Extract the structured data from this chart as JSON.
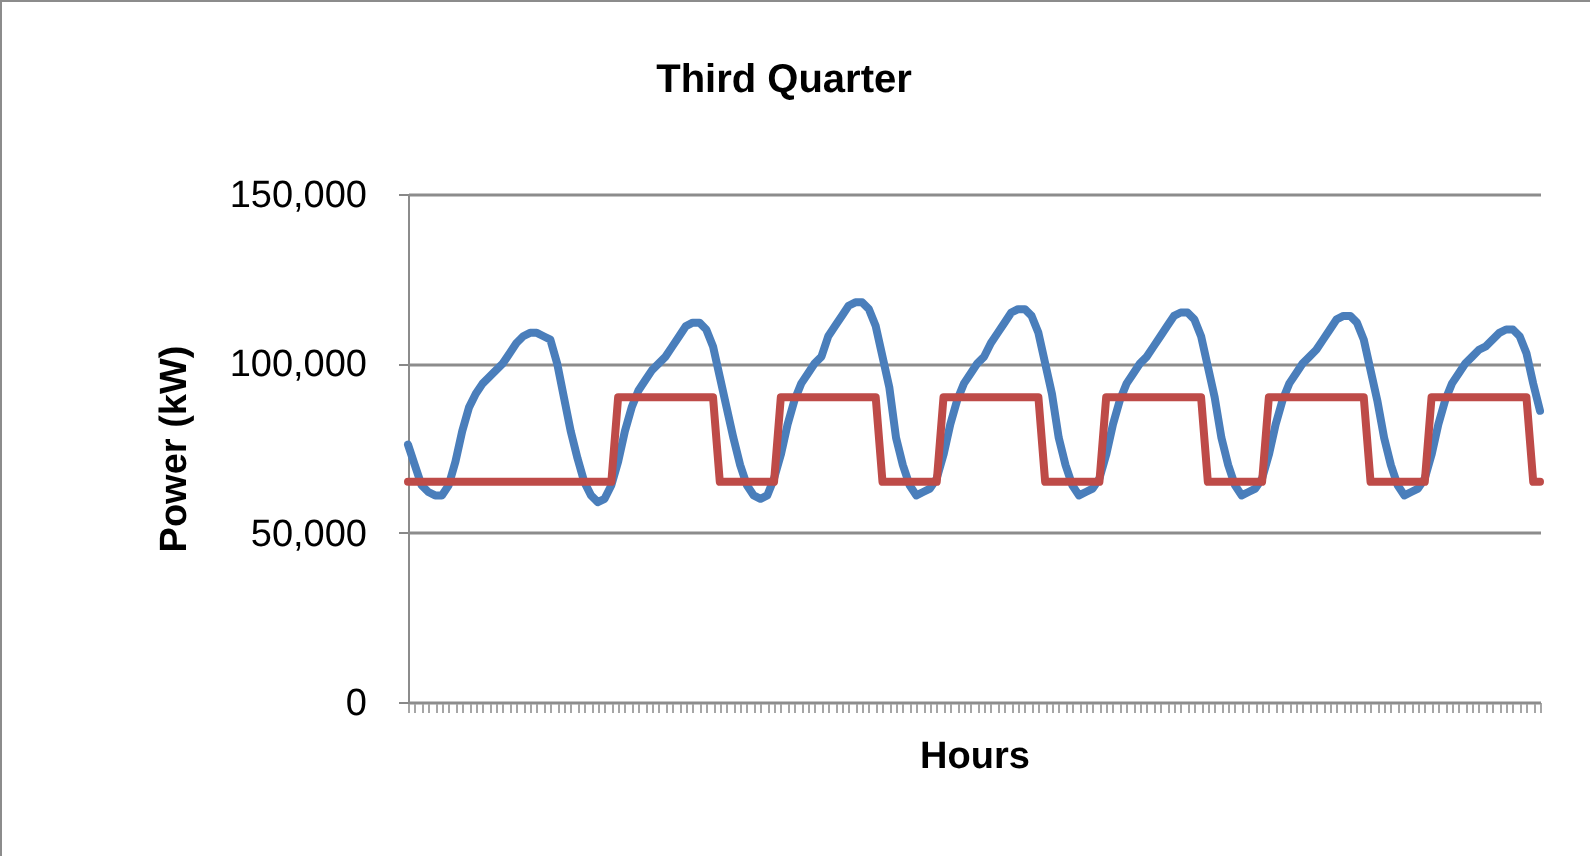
{
  "chart_data": {
    "type": "line",
    "title": "Third Quarter",
    "xlabel": "Hours",
    "ylabel": "Power (kW)",
    "categories": [
      null,
      null,
      null,
      null,
      null,
      null,
      null,
      null,
      null,
      null,
      null,
      null,
      null,
      null,
      null,
      null,
      null,
      null,
      null,
      null,
      null,
      null,
      null,
      null,
      null,
      null,
      null,
      null,
      null,
      null,
      null,
      null,
      null,
      null,
      null,
      null,
      null,
      null,
      null,
      null,
      null,
      null,
      null,
      null,
      null,
      null,
      null,
      null,
      null,
      null,
      null,
      null,
      null,
      null,
      null,
      null,
      null,
      null,
      null,
      null,
      null,
      null,
      null,
      null,
      null,
      null,
      null,
      null,
      null,
      null,
      null,
      null,
      null,
      null,
      null,
      null,
      null,
      null,
      null,
      null,
      null,
      null,
      null,
      null,
      null,
      null,
      null,
      null,
      null,
      null,
      null,
      null,
      null,
      null,
      null,
      null,
      null,
      null,
      null,
      null,
      null,
      null,
      null,
      null,
      null,
      null,
      null,
      null,
      null,
      null,
      null,
      null,
      null,
      null,
      null,
      null,
      null,
      null,
      null,
      null,
      null,
      null,
      null,
      null,
      null,
      null,
      null,
      null,
      null,
      null,
      null,
      null,
      null,
      null,
      null,
      null,
      null,
      null,
      null,
      null,
      null,
      null,
      null,
      null,
      null,
      null,
      null,
      null,
      null,
      null,
      null,
      null,
      null,
      null,
      null,
      null,
      null,
      null,
      null,
      null,
      null,
      null,
      null,
      null,
      null,
      null,
      null,
      null
    ],
    "series": [
      {
        "color": "#4a7ebb",
        "values": [
          76000,
          70000,
          64000,
          62000,
          61000,
          61000,
          64000,
          71000,
          80000,
          87000,
          91000,
          94000,
          96000,
          98000,
          100000,
          103000,
          106000,
          108000,
          109000,
          109000,
          108000,
          107000,
          100000,
          90000,
          80000,
          72000,
          65000,
          61000,
          59000,
          60000,
          64000,
          71000,
          80000,
          87000,
          92000,
          95000,
          98000,
          100000,
          102000,
          105000,
          108000,
          111000,
          112000,
          112000,
          110000,
          105000,
          96000,
          87000,
          78000,
          70000,
          64000,
          61000,
          60000,
          61000,
          66000,
          73000,
          82000,
          89000,
          94000,
          97000,
          100000,
          102000,
          108000,
          111000,
          114000,
          117000,
          118000,
          118000,
          116000,
          111000,
          102000,
          93000,
          78000,
          70000,
          64000,
          61000,
          62000,
          63000,
          66000,
          73000,
          82000,
          89000,
          94000,
          97000,
          100000,
          102000,
          106000,
          109000,
          112000,
          115000,
          116000,
          116000,
          114000,
          109000,
          100000,
          91000,
          78000,
          70000,
          64000,
          61000,
          62000,
          63000,
          66000,
          73000,
          82000,
          89000,
          94000,
          97000,
          100000,
          102000,
          105000,
          108000,
          111000,
          114000,
          115000,
          115000,
          113000,
          108000,
          99000,
          90000,
          78000,
          70000,
          64000,
          61000,
          62000,
          63000,
          66000,
          73000,
          82000,
          89000,
          94000,
          97000,
          100000,
          102000,
          104000,
          107000,
          110000,
          113000,
          114000,
          114000,
          112000,
          107000,
          98000,
          89000,
          78000,
          70000,
          64000,
          61000,
          62000,
          63000,
          66000,
          73000,
          82000,
          89000,
          94000,
          97000,
          100000,
          102000,
          104000,
          105000,
          107000,
          109000,
          110000,
          110000,
          108000,
          103000,
          94000,
          86000
        ]
      },
      {
        "color": "#be4b48",
        "values": [
          65000,
          65000,
          65000,
          65000,
          65000,
          65000,
          65000,
          65000,
          65000,
          65000,
          65000,
          65000,
          65000,
          65000,
          65000,
          65000,
          65000,
          65000,
          65000,
          65000,
          65000,
          65000,
          65000,
          65000,
          65000,
          65000,
          65000,
          65000,
          65000,
          65000,
          65000,
          90000,
          90000,
          90000,
          90000,
          90000,
          90000,
          90000,
          90000,
          90000,
          90000,
          90000,
          90000,
          90000,
          90000,
          90000,
          65000,
          65000,
          65000,
          65000,
          65000,
          65000,
          65000,
          65000,
          65000,
          90000,
          90000,
          90000,
          90000,
          90000,
          90000,
          90000,
          90000,
          90000,
          90000,
          90000,
          90000,
          90000,
          90000,
          90000,
          65000,
          65000,
          65000,
          65000,
          65000,
          65000,
          65000,
          65000,
          65000,
          90000,
          90000,
          90000,
          90000,
          90000,
          90000,
          90000,
          90000,
          90000,
          90000,
          90000,
          90000,
          90000,
          90000,
          90000,
          65000,
          65000,
          65000,
          65000,
          65000,
          65000,
          65000,
          65000,
          65000,
          90000,
          90000,
          90000,
          90000,
          90000,
          90000,
          90000,
          90000,
          90000,
          90000,
          90000,
          90000,
          90000,
          90000,
          90000,
          65000,
          65000,
          65000,
          65000,
          65000,
          65000,
          65000,
          65000,
          65000,
          90000,
          90000,
          90000,
          90000,
          90000,
          90000,
          90000,
          90000,
          90000,
          90000,
          90000,
          90000,
          90000,
          90000,
          90000,
          65000,
          65000,
          65000,
          65000,
          65000,
          65000,
          65000,
          65000,
          65000,
          90000,
          90000,
          90000,
          90000,
          90000,
          90000,
          90000,
          90000,
          90000,
          90000,
          90000,
          90000,
          90000,
          90000,
          90000,
          65000,
          65000
        ]
      }
    ],
    "ylim": [
      0,
      150000
    ],
    "yticks": [
      0,
      {
        "value": 50000,
        "label": "50,000"
      },
      {
        "value": 100000,
        "label": "100,000"
      },
      {
        "value": 150000,
        "label": "150,000"
      }
    ],
    "grid": "y",
    "tick_labels": "y"
  }
}
